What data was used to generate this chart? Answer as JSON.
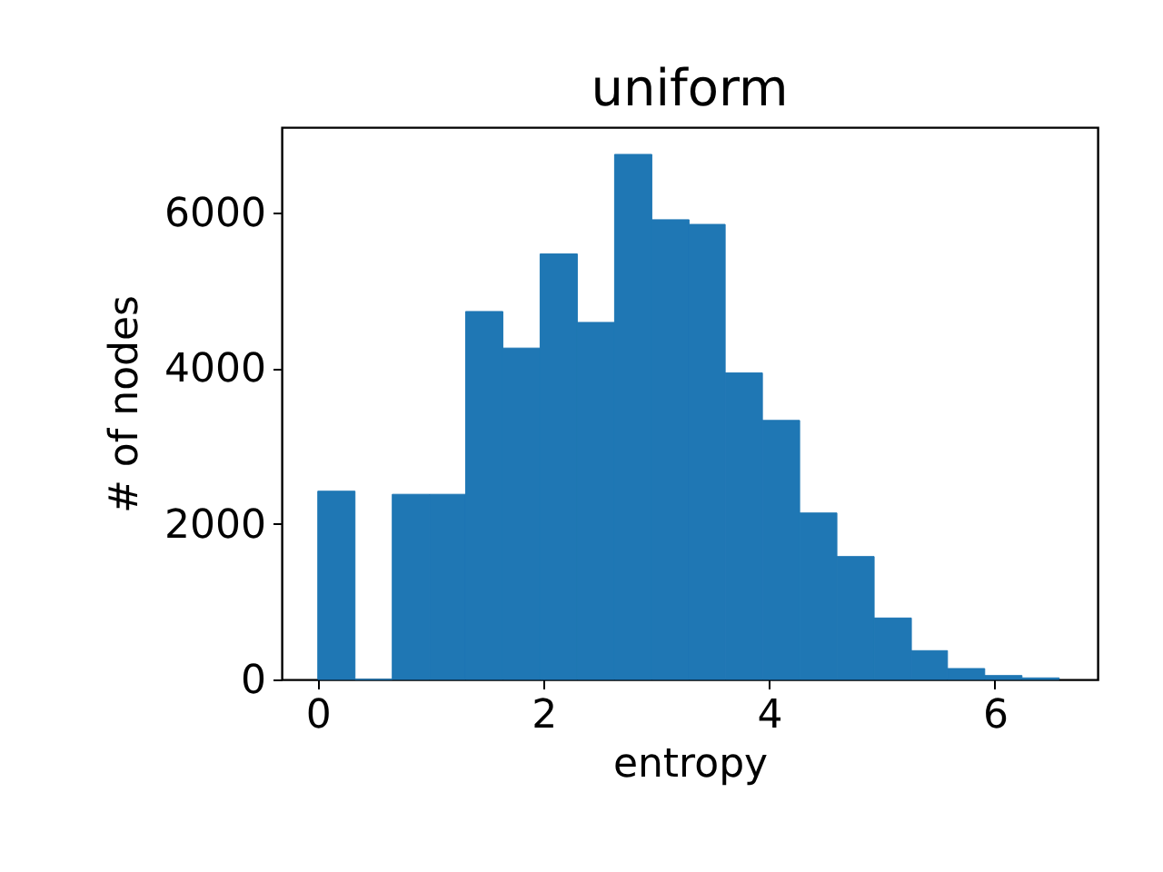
{
  "chart_data": {
    "type": "histogram",
    "title": "uniform",
    "xlabel": "entropy",
    "ylabel": "# of nodes",
    "color": "#1f77b4",
    "bins": [
      0,
      0.33,
      0.66,
      0.99,
      1.31,
      1.64,
      1.97,
      2.3,
      2.63,
      2.96,
      3.29,
      3.61,
      3.94,
      4.27,
      4.6,
      4.93,
      5.26,
      5.58,
      5.91,
      6.24,
      6.57
    ],
    "values": [
      2420,
      0,
      2380,
      2380,
      4730,
      4260,
      5470,
      4590,
      6750,
      5910,
      5850,
      3940,
      3330,
      2140,
      1580,
      790,
      370,
      140,
      50,
      20
    ],
    "xlim": [
      -0.32,
      6.91
    ],
    "ylim": [
      0,
      7100
    ],
    "xticks": [
      0,
      2,
      4,
      6
    ],
    "yticks": [
      0,
      2000,
      4000,
      6000
    ],
    "grid": false
  }
}
